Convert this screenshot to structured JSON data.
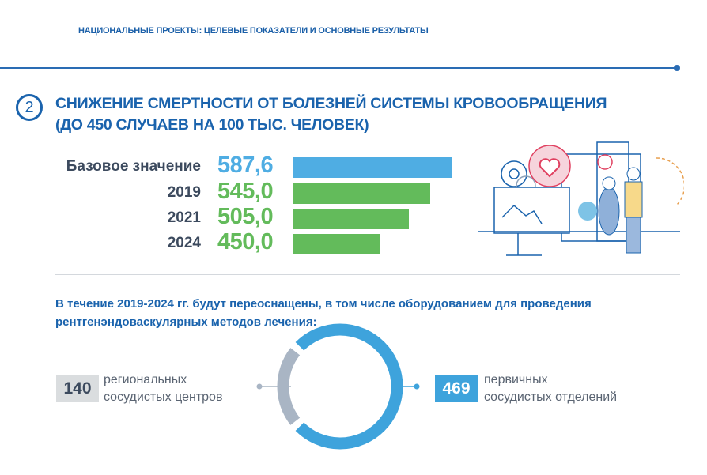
{
  "header": {
    "title": "НАЦИОНАЛЬНЫЕ ПРОЕКТЫ: ЦЕЛЕВЫЕ ПОКАЗАТЕЛИ И ОСНОВНЫЕ РЕЗУЛЬТАТЫ"
  },
  "section": {
    "number": "2",
    "title_line1": "СНИЖЕНИЕ СМЕРТНОСТИ ОТ БОЛЕЗНЕЙ СИСТЕМЫ КРОВООБРАЩЕНИЯ",
    "title_line2": "(ДО 450 СЛУЧАЕВ НА 100 ТЫС. ЧЕЛОВЕК)"
  },
  "chart_data": {
    "type": "bar",
    "orientation": "horizontal",
    "categories": [
      "Базовое значение",
      "2019",
      "2021",
      "2024"
    ],
    "values": [
      587.6,
      545.0,
      505.0,
      450.0
    ],
    "value_labels": [
      "587,6",
      "545,0",
      "505,0",
      "450,0"
    ],
    "colors": [
      "#4fade3",
      "#63bb5b",
      "#63bb5b",
      "#63bb5b"
    ]
  },
  "lead": "В течение 2019-2024 гг. будут переоснащены, в том числе оборудованием для проведения рентгенэндоваскулярных методов лечения:",
  "stats": {
    "left": {
      "value": "140",
      "line1": "региональных",
      "line2": "сосудистых центров",
      "color": "#a9b5c4",
      "box_color": "#dadddf"
    },
    "right": {
      "value": "469",
      "line1": "первичных",
      "line2": "сосудистых отделений",
      "color": "#3ea3dc"
    }
  },
  "colors": {
    "primary": "#1a63ad",
    "green": "#63bb5b",
    "blue": "#4fade3"
  }
}
